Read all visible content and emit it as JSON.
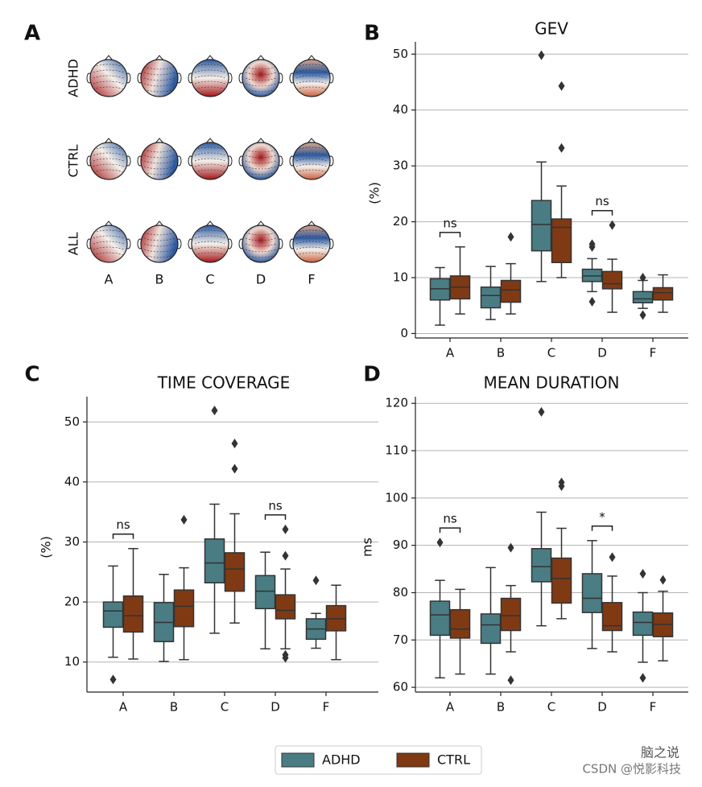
{
  "chart_data": [
    {
      "type": "topomap",
      "panel": "A",
      "rows": [
        "ADHD",
        "CTRL",
        "ALL"
      ],
      "columns": [
        "A",
        "B",
        "C",
        "D",
        "F"
      ]
    },
    {
      "type": "box",
      "panel": "B",
      "title": "GEV",
      "ylabel": "(%)",
      "categories": [
        "A",
        "B",
        "C",
        "D",
        "F"
      ],
      "ylim": [
        -0.8,
        52.2
      ],
      "yticks": [
        0,
        10,
        20,
        30,
        40,
        50
      ],
      "grid": true,
      "annotations": [
        {
          "text": "ns",
          "category": "A"
        },
        {
          "text": "ns",
          "category": "D"
        }
      ],
      "series": [
        {
          "name": "ADHD",
          "color": "#4a7d83",
          "boxes": [
            {
              "whislo": 1.5,
              "q1": 6.0,
              "med": 8.0,
              "q3": 9.8,
              "whishi": 11.8,
              "fliers": []
            },
            {
              "whislo": 2.5,
              "q1": 4.6,
              "med": 6.8,
              "q3": 8.3,
              "whishi": 12.0,
              "fliers": []
            },
            {
              "whislo": 9.3,
              "q1": 14.8,
              "med": 19.5,
              "q3": 23.8,
              "whishi": 30.7,
              "fliers": [
                49.8
              ]
            },
            {
              "whislo": 7.5,
              "q1": 9.3,
              "med": 10.3,
              "q3": 11.5,
              "whishi": 13.4,
              "fliers": [
                15.5,
                16.0,
                5.7
              ]
            },
            {
              "whislo": 4.5,
              "q1": 5.5,
              "med": 6.2,
              "q3": 7.5,
              "whishi": 9.5,
              "fliers": [
                3.3,
                10.0
              ]
            }
          ]
        },
        {
          "name": "CTRL",
          "color": "#7f3a14",
          "boxes": [
            {
              "whislo": 3.5,
              "q1": 6.2,
              "med": 8.3,
              "q3": 10.3,
              "whishi": 15.5,
              "fliers": []
            },
            {
              "whislo": 3.5,
              "q1": 5.6,
              "med": 7.8,
              "q3": 9.5,
              "whishi": 12.5,
              "fliers": [
                17.3
              ]
            },
            {
              "whislo": 10.0,
              "q1": 12.7,
              "med": 19.0,
              "q3": 20.5,
              "whishi": 26.4,
              "fliers": [
                44.3,
                33.2
              ]
            },
            {
              "whislo": 3.8,
              "q1": 8.0,
              "med": 8.9,
              "q3": 11.1,
              "whishi": 13.3,
              "fliers": [
                19.4
              ]
            },
            {
              "whislo": 3.8,
              "q1": 6.0,
              "med": 7.3,
              "q3": 8.2,
              "whishi": 10.5,
              "fliers": []
            }
          ]
        }
      ]
    },
    {
      "type": "box",
      "panel": "C",
      "title": "TIME COVERAGE",
      "ylabel": "(%)",
      "categories": [
        "A",
        "B",
        "C",
        "D",
        "F"
      ],
      "ylim": [
        5.0,
        54.2
      ],
      "yticks": [
        10,
        20,
        30,
        40,
        50
      ],
      "grid": true,
      "annotations": [
        {
          "text": "ns",
          "category": "A"
        },
        {
          "text": "ns",
          "category": "D"
        }
      ],
      "series": [
        {
          "name": "ADHD",
          "color": "#4a7d83",
          "boxes": [
            {
              "whislo": 10.8,
              "q1": 15.8,
              "med": 18.5,
              "q3": 20.0,
              "whishi": 26.0,
              "fliers": [
                7.1
              ]
            },
            {
              "whislo": 10.1,
              "q1": 13.4,
              "med": 16.6,
              "q3": 19.9,
              "whishi": 24.6,
              "fliers": []
            },
            {
              "whislo": 14.8,
              "q1": 23.2,
              "med": 26.5,
              "q3": 30.5,
              "whishi": 36.3,
              "fliers": [
                51.9
              ]
            },
            {
              "whislo": 12.2,
              "q1": 18.9,
              "med": 21.8,
              "q3": 24.4,
              "whishi": 28.3,
              "fliers": []
            },
            {
              "whislo": 12.3,
              "q1": 13.8,
              "med": 15.5,
              "q3": 17.2,
              "whishi": 18.1,
              "fliers": [
                23.6
              ]
            }
          ]
        },
        {
          "name": "CTRL",
          "color": "#7f3a14",
          "boxes": [
            {
              "whislo": 10.5,
              "q1": 15.0,
              "med": 17.7,
              "q3": 21.0,
              "whishi": 28.9,
              "fliers": []
            },
            {
              "whislo": 10.4,
              "q1": 15.9,
              "med": 19.3,
              "q3": 22.0,
              "whishi": 25.7,
              "fliers": [
                33.7
              ]
            },
            {
              "whislo": 16.5,
              "q1": 21.8,
              "med": 25.5,
              "q3": 28.2,
              "whishi": 34.7,
              "fliers": [
                46.4,
                42.2
              ]
            },
            {
              "whislo": 12.2,
              "q1": 17.2,
              "med": 18.6,
              "q3": 21.2,
              "whishi": 25.5,
              "fliers": [
                32.1,
                27.7,
                11.2,
                10.7
              ]
            },
            {
              "whislo": 10.4,
              "q1": 15.2,
              "med": 17.2,
              "q3": 19.4,
              "whishi": 22.8,
              "fliers": []
            }
          ]
        }
      ]
    },
    {
      "type": "box",
      "panel": "D",
      "title": "MEAN DURATION",
      "ylabel": "ms",
      "categories": [
        "A",
        "B",
        "C",
        "D",
        "F"
      ],
      "ylim": [
        59.0,
        121.4
      ],
      "yticks": [
        60,
        70,
        80,
        90,
        100,
        110,
        120
      ],
      "grid": true,
      "annotations": [
        {
          "text": "ns",
          "category": "A"
        },
        {
          "text": "*",
          "category": "D"
        }
      ],
      "series": [
        {
          "name": "ADHD",
          "color": "#4a7d83",
          "boxes": [
            {
              "whislo": 62.0,
              "q1": 71.0,
              "med": 75.3,
              "q3": 78.2,
              "whishi": 82.6,
              "fliers": [
                90.6
              ]
            },
            {
              "whislo": 62.8,
              "q1": 69.3,
              "med": 73.2,
              "q3": 75.5,
              "whishi": 85.3,
              "fliers": []
            },
            {
              "whislo": 73.0,
              "q1": 82.3,
              "med": 85.5,
              "q3": 89.3,
              "whishi": 97.0,
              "fliers": [
                118.2
              ]
            },
            {
              "whislo": 68.2,
              "q1": 75.8,
              "med": 78.8,
              "q3": 84.0,
              "whishi": 91.0,
              "fliers": []
            },
            {
              "whislo": 65.3,
              "q1": 71.0,
              "med": 73.7,
              "q3": 75.9,
              "whishi": 80.0,
              "fliers": [
                84.0,
                62.0
              ]
            }
          ]
        },
        {
          "name": "CTRL",
          "color": "#7f3a14",
          "boxes": [
            {
              "whislo": 62.8,
              "q1": 70.4,
              "med": 72.3,
              "q3": 76.4,
              "whishi": 80.7,
              "fliers": []
            },
            {
              "whislo": 67.5,
              "q1": 72.0,
              "med": 75.1,
              "q3": 78.8,
              "whishi": 81.5,
              "fliers": [
                89.5,
                61.5
              ]
            },
            {
              "whislo": 74.5,
              "q1": 77.8,
              "med": 83.0,
              "q3": 87.3,
              "whishi": 93.6,
              "fliers": [
                103.3,
                102.5
              ]
            },
            {
              "whislo": 67.5,
              "q1": 72.0,
              "med": 73.0,
              "q3": 77.9,
              "whishi": 83.5,
              "fliers": [
                87.5
              ]
            },
            {
              "whislo": 65.6,
              "q1": 70.7,
              "med": 73.3,
              "q3": 75.7,
              "whishi": 80.3,
              "fliers": [
                82.7
              ]
            }
          ]
        }
      ]
    }
  ],
  "watermark": [
    "脑之说",
    "CSDN @悦影科技"
  ]
}
